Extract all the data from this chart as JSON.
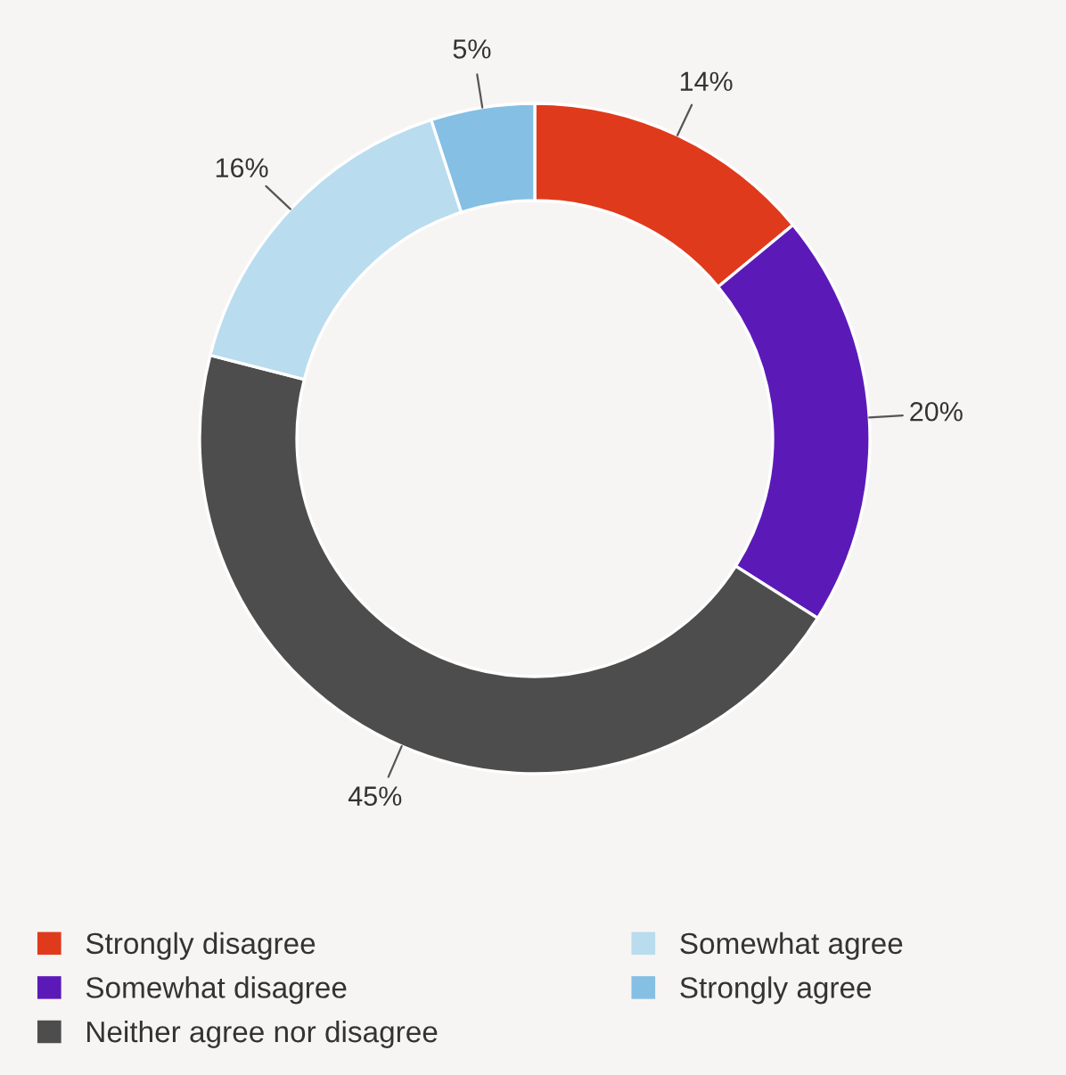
{
  "chart_data": {
    "type": "donut",
    "categories": [
      "Strongly disagree",
      "Somewhat disagree",
      "Neither agree nor disagree",
      "Somewhat agree",
      "Strongly agree"
    ],
    "values": [
      14,
      20,
      45,
      16,
      5
    ],
    "colors": [
      "#e03a1c",
      "#5b1ab8",
      "#4d4d4d",
      "#b9dcef",
      "#85bfe3"
    ],
    "value_labels": [
      "14%",
      "20%",
      "45%",
      "16%",
      "5%"
    ],
    "legend": "bottom left"
  }
}
